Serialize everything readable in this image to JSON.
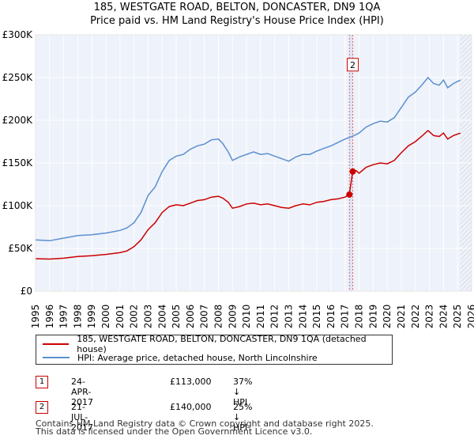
{
  "chart_data": {
    "type": "line",
    "title_line1": "185, WESTGATE ROAD, BELTON, DONCASTER, DN9 1QA",
    "title_line2": "Price paid vs. HM Land Registry's House Price Index (HPI)",
    "xlim": [
      1995,
      2026
    ],
    "ylim": [
      0,
      300000
    ],
    "x_ticks": [
      "1995",
      "1996",
      "1997",
      "1998",
      "1999",
      "2000",
      "2001",
      "2002",
      "2003",
      "2004",
      "2005",
      "2006",
      "2007",
      "2008",
      "2009",
      "2010",
      "2011",
      "2012",
      "2013",
      "2014",
      "2015",
      "2016",
      "2017",
      "2018",
      "2019",
      "2020",
      "2021",
      "2022",
      "2023",
      "2024",
      "2025",
      "2026"
    ],
    "y_ticks": [
      {
        "value": 0,
        "label": "£0"
      },
      {
        "value": 50000,
        "label": "£50K"
      },
      {
        "value": 100000,
        "label": "£100K"
      },
      {
        "value": 150000,
        "label": "£150K"
      },
      {
        "value": 200000,
        "label": "£200K"
      },
      {
        "value": 250000,
        "label": "£250K"
      },
      {
        "value": 300000,
        "label": "£300K"
      }
    ],
    "forecast_start": 2025.2,
    "series": [
      {
        "name": "185, WESTGATE ROAD, BELTON, DONCASTER, DN9 1QA (detached house)",
        "color": "#cc0000",
        "points": [
          [
            1995.0,
            38000
          ],
          [
            1996.0,
            37500
          ],
          [
            1997.0,
            38500
          ],
          [
            1998.0,
            40500
          ],
          [
            1999.0,
            41500
          ],
          [
            2000.0,
            43000
          ],
          [
            2001.0,
            45000
          ],
          [
            2001.5,
            47000
          ],
          [
            2002.0,
            52000
          ],
          [
            2002.5,
            60000
          ],
          [
            2003.0,
            72000
          ],
          [
            2003.5,
            80000
          ],
          [
            2004.0,
            92000
          ],
          [
            2004.5,
            99000
          ],
          [
            2005.0,
            101000
          ],
          [
            2005.5,
            100000
          ],
          [
            2006.0,
            103000
          ],
          [
            2006.5,
            106000
          ],
          [
            2007.0,
            107000
          ],
          [
            2007.5,
            110000
          ],
          [
            2008.0,
            111000
          ],
          [
            2008.3,
            109000
          ],
          [
            2008.7,
            104000
          ],
          [
            2009.0,
            97000
          ],
          [
            2009.5,
            99000
          ],
          [
            2010.0,
            102000
          ],
          [
            2010.5,
            103000
          ],
          [
            2011.0,
            101000
          ],
          [
            2011.5,
            102000
          ],
          [
            2012.0,
            100000
          ],
          [
            2012.5,
            98000
          ],
          [
            2013.0,
            97000
          ],
          [
            2013.5,
            100000
          ],
          [
            2014.0,
            102000
          ],
          [
            2014.5,
            101000
          ],
          [
            2015.0,
            104000
          ],
          [
            2015.5,
            105000
          ],
          [
            2016.0,
            107000
          ],
          [
            2016.5,
            108000
          ],
          [
            2017.0,
            110000
          ],
          [
            2017.3,
            113000
          ],
          [
            2017.55,
            140000
          ],
          [
            2017.8,
            141000
          ],
          [
            2018.0,
            138000
          ],
          [
            2018.5,
            145000
          ],
          [
            2019.0,
            148000
          ],
          [
            2019.5,
            150000
          ],
          [
            2020.0,
            149000
          ],
          [
            2020.5,
            153000
          ],
          [
            2021.0,
            162000
          ],
          [
            2021.5,
            170000
          ],
          [
            2022.0,
            175000
          ],
          [
            2022.5,
            182000
          ],
          [
            2022.9,
            188000
          ],
          [
            2023.3,
            182000
          ],
          [
            2023.7,
            181000
          ],
          [
            2024.0,
            185000
          ],
          [
            2024.3,
            178000
          ],
          [
            2024.7,
            182000
          ],
          [
            2025.2,
            185000
          ]
        ]
      },
      {
        "name": "HPI: Average price, detached house, North Lincolnshire",
        "color": "#5b8fd1",
        "points": [
          [
            1995.0,
            60000
          ],
          [
            1996.0,
            59000
          ],
          [
            1997.0,
            62000
          ],
          [
            1998.0,
            65000
          ],
          [
            1999.0,
            66000
          ],
          [
            2000.0,
            68000
          ],
          [
            2001.0,
            71000
          ],
          [
            2001.5,
            74000
          ],
          [
            2002.0,
            80000
          ],
          [
            2002.5,
            92000
          ],
          [
            2003.0,
            112000
          ],
          [
            2003.5,
            122000
          ],
          [
            2004.0,
            140000
          ],
          [
            2004.5,
            153000
          ],
          [
            2005.0,
            158000
          ],
          [
            2005.5,
            160000
          ],
          [
            2006.0,
            166000
          ],
          [
            2006.5,
            170000
          ],
          [
            2007.0,
            172000
          ],
          [
            2007.5,
            177000
          ],
          [
            2008.0,
            178000
          ],
          [
            2008.3,
            173000
          ],
          [
            2008.7,
            163000
          ],
          [
            2009.0,
            153000
          ],
          [
            2009.5,
            157000
          ],
          [
            2010.0,
            160000
          ],
          [
            2010.5,
            163000
          ],
          [
            2011.0,
            160000
          ],
          [
            2011.5,
            161000
          ],
          [
            2012.0,
            158000
          ],
          [
            2012.5,
            155000
          ],
          [
            2013.0,
            152000
          ],
          [
            2013.5,
            157000
          ],
          [
            2014.0,
            160000
          ],
          [
            2014.5,
            160000
          ],
          [
            2015.0,
            164000
          ],
          [
            2015.5,
            167000
          ],
          [
            2016.0,
            170000
          ],
          [
            2016.5,
            174000
          ],
          [
            2017.0,
            178000
          ],
          [
            2017.5,
            181000
          ],
          [
            2018.0,
            185000
          ],
          [
            2018.5,
            192000
          ],
          [
            2019.0,
            196000
          ],
          [
            2019.5,
            199000
          ],
          [
            2020.0,
            198000
          ],
          [
            2020.5,
            203000
          ],
          [
            2021.0,
            215000
          ],
          [
            2021.5,
            227000
          ],
          [
            2022.0,
            233000
          ],
          [
            2022.5,
            242000
          ],
          [
            2022.9,
            250000
          ],
          [
            2023.3,
            243000
          ],
          [
            2023.7,
            241000
          ],
          [
            2024.0,
            247000
          ],
          [
            2024.3,
            238000
          ],
          [
            2024.7,
            243000
          ],
          [
            2025.2,
            247000
          ]
        ]
      }
    ],
    "markers": [
      {
        "label": "1",
        "x": 2017.31,
        "y": 113000
      },
      {
        "label": "2",
        "x": 2017.55,
        "y": 140000
      }
    ],
    "annotation_box": {
      "label": "2",
      "x": 2017.55,
      "y": 265000
    }
  },
  "legend": {
    "items": [
      {
        "label": "185, WESTGATE ROAD, BELTON, DONCASTER, DN9 1QA (detached house)",
        "color": "#cc0000"
      },
      {
        "label": "HPI: Average price, detached house, North Lincolnshire",
        "color": "#5b8fd1"
      }
    ]
  },
  "transactions": [
    {
      "id": "1",
      "date": "24-APR-2017",
      "price": "£113,000",
      "hpi": "37% ↓ HPI"
    },
    {
      "id": "2",
      "date": "21-JUL-2017",
      "price": "£140,000",
      "hpi": "25% ↓ HPI"
    }
  ],
  "footer": {
    "line1": "Contains HM Land Registry data © Crown copyright and database right 2025.",
    "line2": "This data is licensed under the Open Government Licence v3.0."
  }
}
